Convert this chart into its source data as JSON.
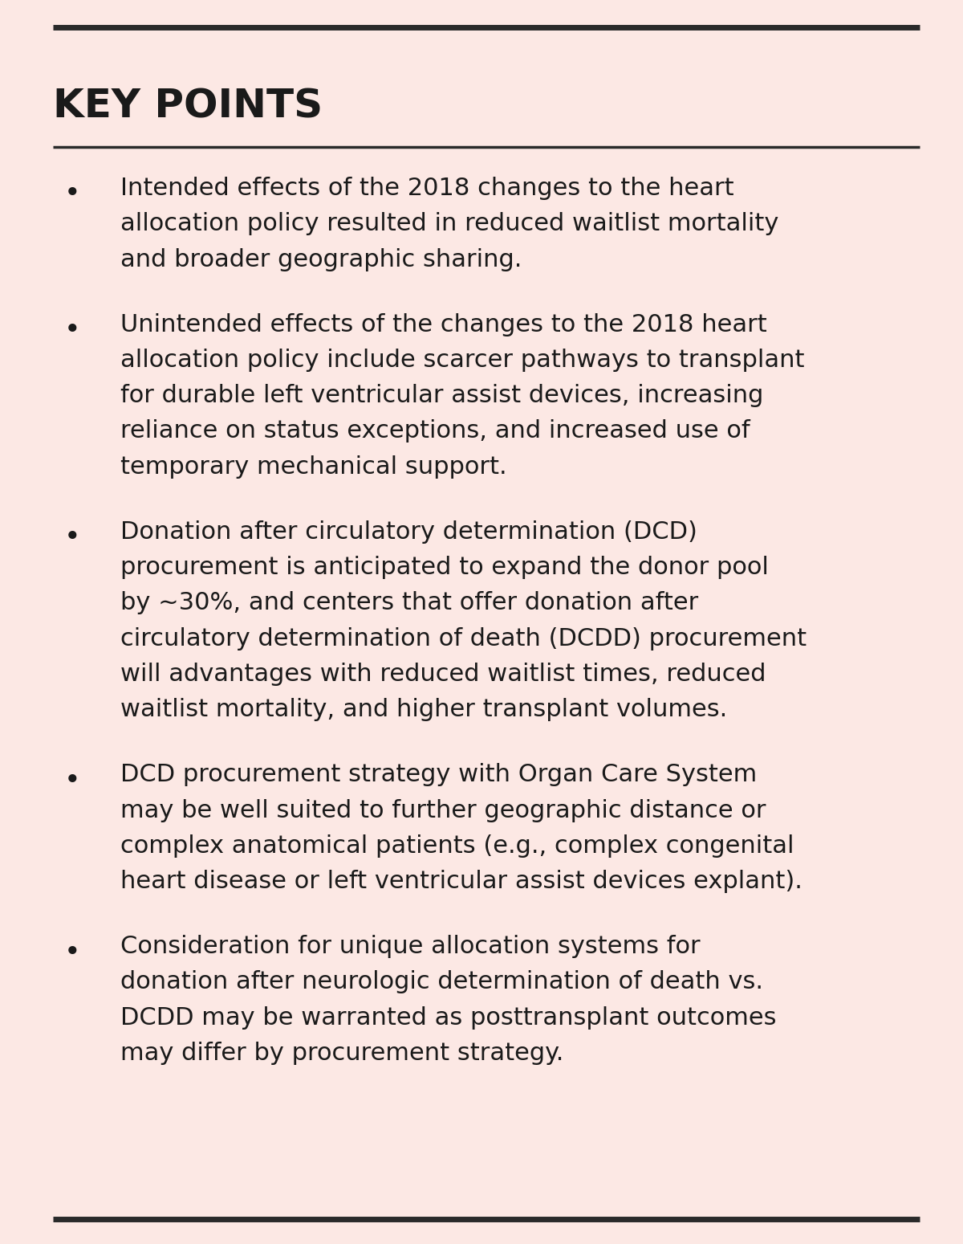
{
  "background_color": "#fce8e4",
  "title": "KEY POINTS",
  "title_fontsize": 36,
  "title_fontweight": "bold",
  "title_color": "#1a1a1a",
  "text_color": "#1a1a1a",
  "bullet_color": "#1a1a1a",
  "line_color": "#2a2a2a",
  "text_fontsize": 22,
  "bullet_points": [
    "Intended effects of the 2018 changes to the heart\nallocation policy resulted in reduced waitlist mortality\nand broader geographic sharing.",
    "Unintended effects of the changes to the 2018 heart\nallocation policy include scarcer pathways to transplant\nfor durable left ventricular assist devices, increasing\nreliance on status exceptions, and increased use of\ntemporary mechanical support.",
    "Donation after circulatory determination (DCD)\nprocurement is anticipated to expand the donor pool\nby ~30%, and centers that offer donation after\ncirculatory determination of death (DCDD) procurement\nwill advantages with reduced waitlist times, reduced\nwaitlist mortality, and higher transplant volumes.",
    "DCD procurement strategy with Organ Care System\nmay be well suited to further geographic distance or\ncomplex anatomical patients (e.g., complex congenital\nheart disease or left ventricular assist devices explant).",
    "Consideration for unique allocation systems for\ndonation after neurologic determination of death vs.\nDCDD may be warranted as posttransplant outcomes\nmay differ by procurement strategy."
  ]
}
